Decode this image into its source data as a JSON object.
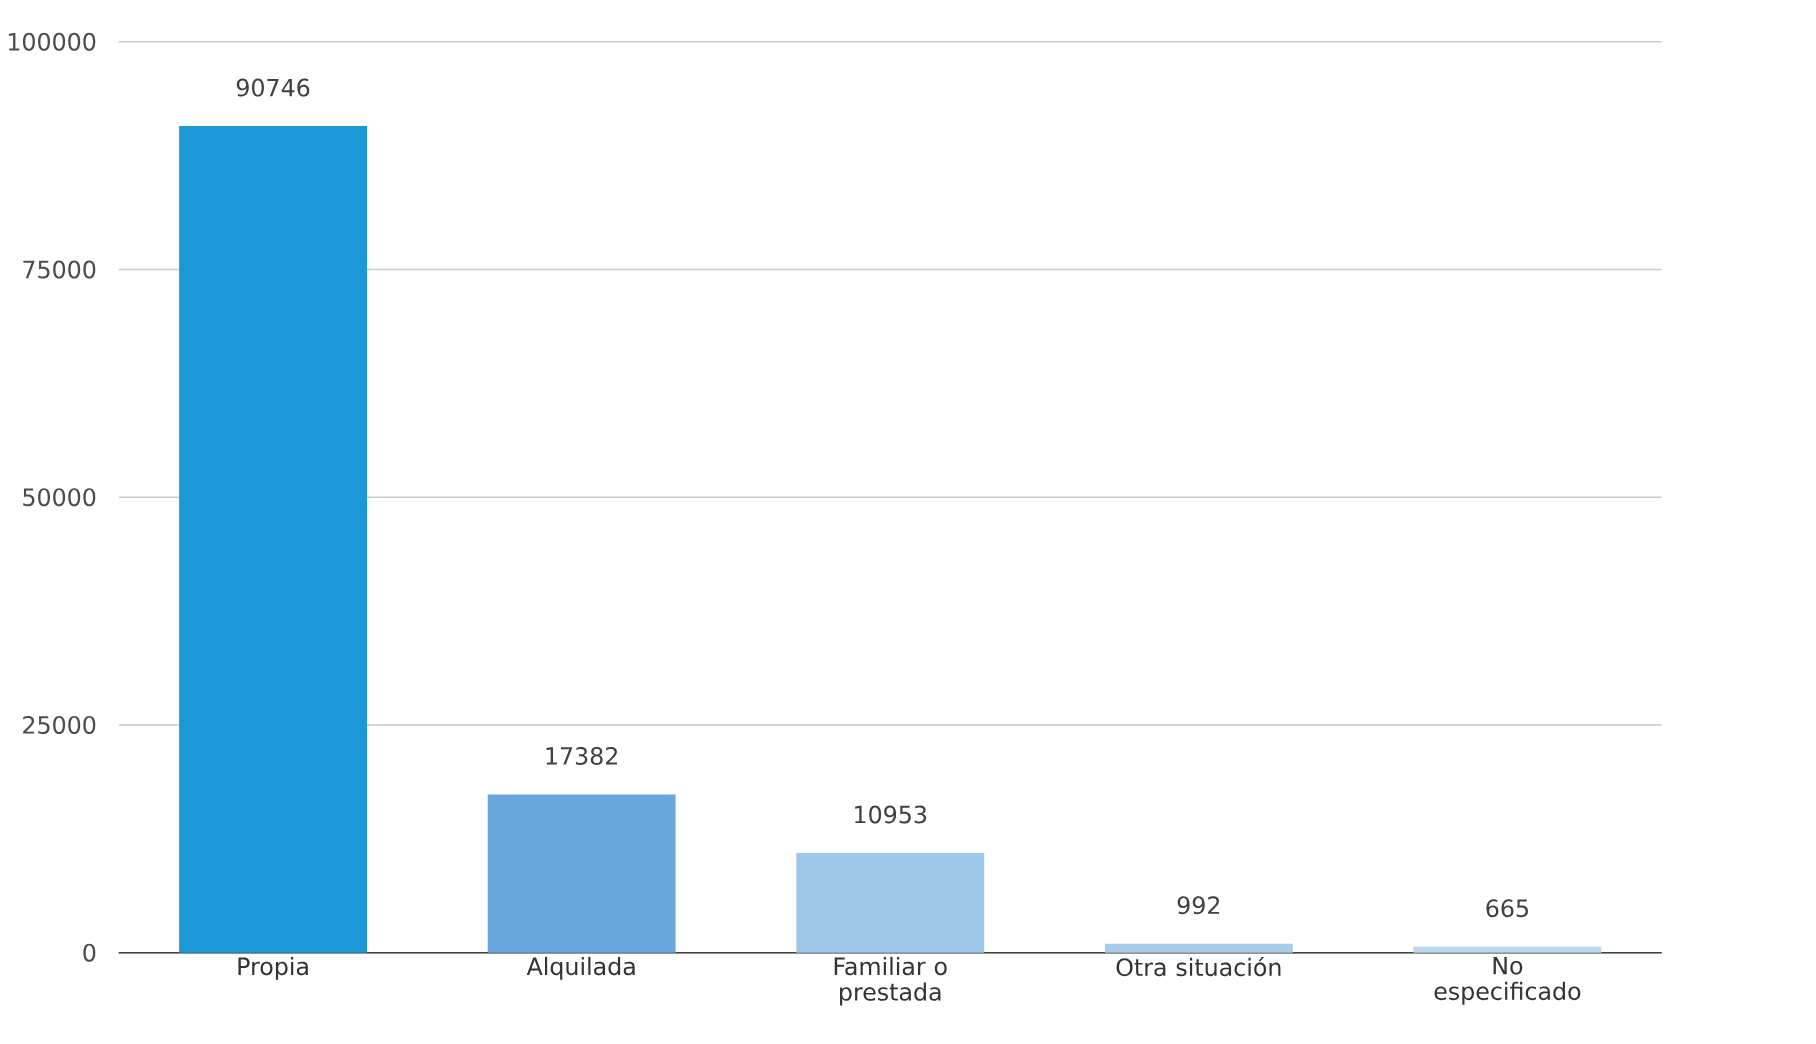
{
  "chart_data": {
    "type": "bar",
    "categories": [
      "Propia",
      "Alquilada",
      "Familiar o prestada",
      "Otra situación",
      "No especificado"
    ],
    "values": [
      90746,
      17382,
      10953,
      992,
      665
    ],
    "colors": [
      "#1b98d6",
      "#6aa7dc",
      "#9ec8ea",
      "#a9cbe8",
      "#bdd5ea"
    ],
    "ylim": [
      0,
      100000
    ],
    "yticks": [
      0,
      25000,
      50000,
      75000,
      100000
    ],
    "grid": "y",
    "data_labels": true
  }
}
